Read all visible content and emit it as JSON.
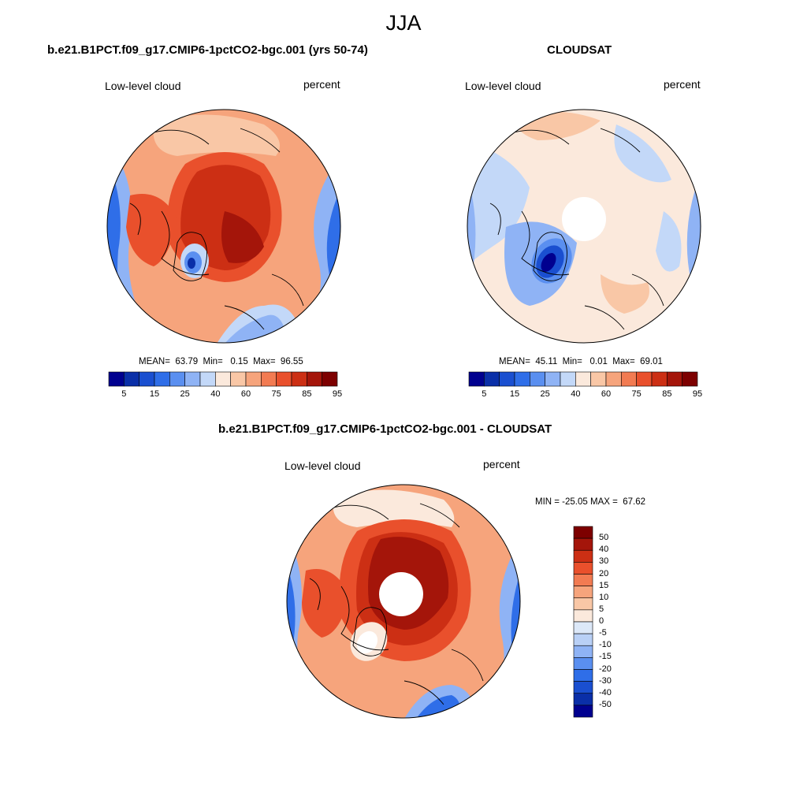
{
  "figure": {
    "season": "JJA"
  },
  "panels": {
    "model": {
      "title": "b.e21.B1PCT.f09_g17.CMIP6-1pctCO2-bgc.001 (yrs 50-74)",
      "left_label": "Low-level cloud",
      "right_label": "percent",
      "stats": "MEAN=  63.79  Min=   0.15  Max=  96.55"
    },
    "obs": {
      "title": "CLOUDSAT",
      "left_label": "Low-level cloud",
      "right_label": "percent",
      "stats": "MEAN=  45.11  Min=   0.01  Max=  69.01"
    },
    "diff": {
      "title": "b.e21.B1PCT.f09_g17.CMIP6-1pctCO2-bgc.001 - CLOUDSAT",
      "left_label": "Low-level cloud",
      "right_label": "percent",
      "minmax": "MIN = -25.05 MAX =  67.62"
    }
  },
  "colorbars": {
    "abs": {
      "colors": [
        "#00008f",
        "#0a2fa8",
        "#1a4fd0",
        "#2f6ee8",
        "#5a8ff0",
        "#8fb3f5",
        "#c3d8f8",
        "#fbe9dc",
        "#f9c7a6",
        "#f6a47c",
        "#f27b52",
        "#e9502c",
        "#cc2f14",
        "#a4150a",
        "#7d0000"
      ],
      "tick_labels": [
        "5",
        "15",
        "25",
        "40",
        "60",
        "75",
        "85",
        "95"
      ]
    },
    "diff": {
      "colors": [
        "#7d0000",
        "#a4150a",
        "#cc2f14",
        "#e9502c",
        "#f27b52",
        "#f6a47c",
        "#f9c7a6",
        "#fbe9dc",
        "#dce8f8",
        "#b9d0f6",
        "#8fb3f5",
        "#5a8ff0",
        "#2f6ee8",
        "#1a4fd0",
        "#0a2fa8",
        "#00008f"
      ],
      "tick_labels": [
        "50",
        "40",
        "30",
        "20",
        "15",
        "10",
        "5",
        "0",
        "-5",
        "-10",
        "-15",
        "-20",
        "-30",
        "-40",
        "-50"
      ]
    }
  }
}
